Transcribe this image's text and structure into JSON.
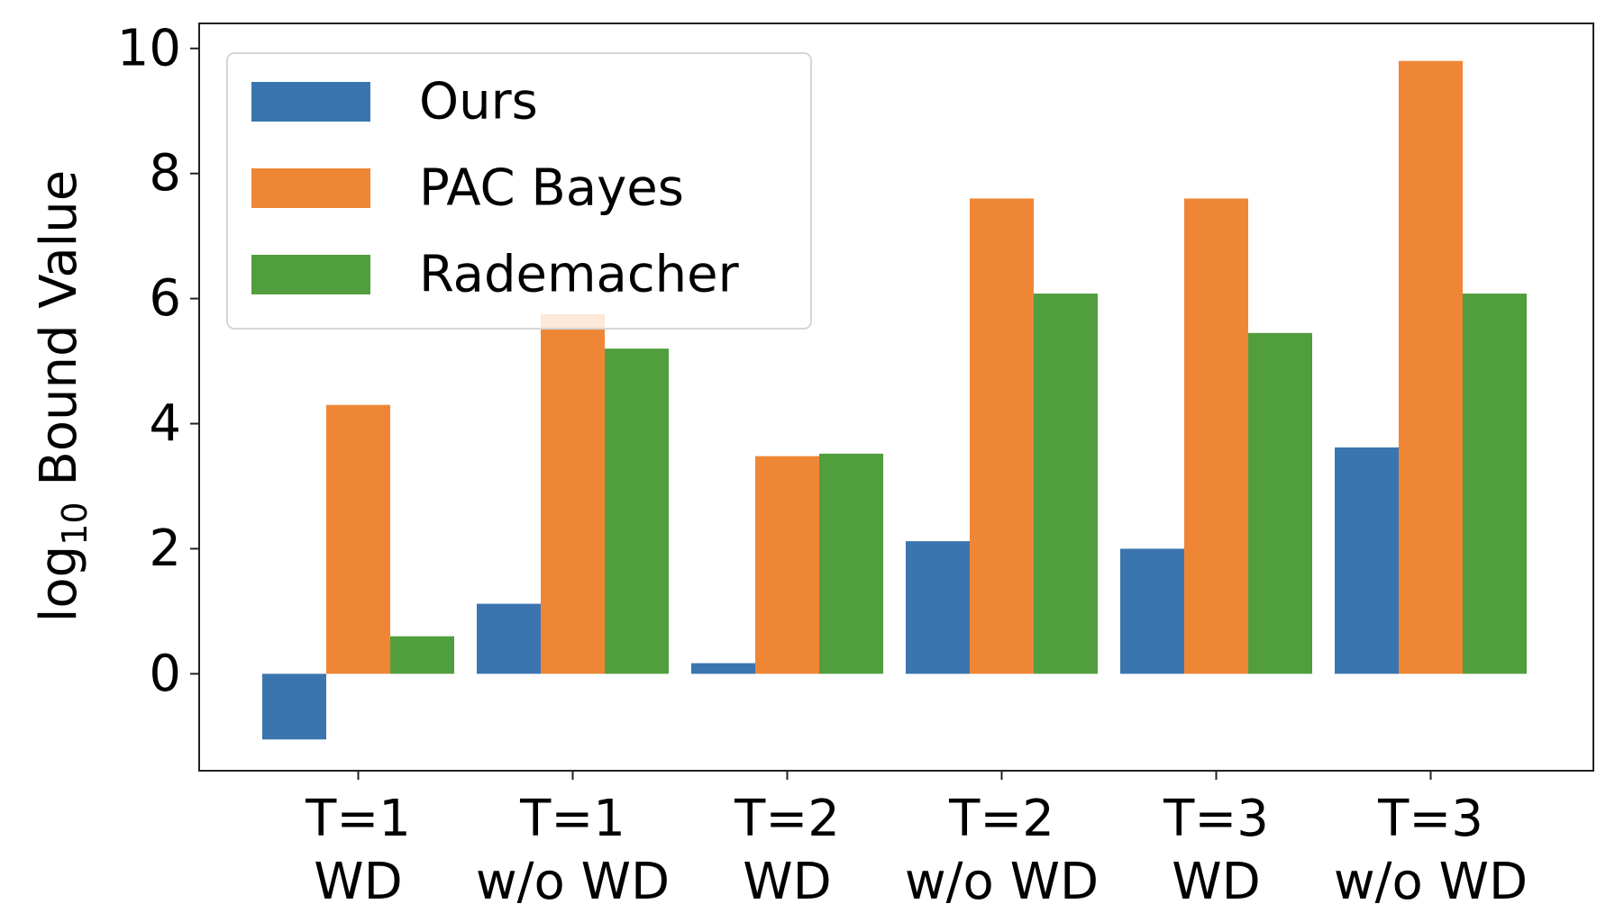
{
  "chart_data": {
    "type": "bar",
    "categories": [
      [
        "T=1",
        "WD"
      ],
      [
        "T=1",
        "w/o WD"
      ],
      [
        "T=2",
        "WD"
      ],
      [
        "T=2",
        "w/o WD"
      ],
      [
        "T=3",
        "WD"
      ],
      [
        "T=3",
        "w/o WD"
      ]
    ],
    "series": [
      {
        "name": "Ours",
        "color": "#3b75af",
        "values": [
          -1.05,
          1.12,
          0.17,
          2.12,
          2.0,
          3.62
        ]
      },
      {
        "name": "PAC Bayes",
        "color": "#ef8636",
        "values": [
          4.3,
          5.75,
          3.48,
          7.6,
          7.6,
          9.8
        ]
      },
      {
        "name": "Rademacher",
        "color": "#519e3e",
        "values": [
          0.6,
          5.2,
          3.52,
          6.08,
          5.45,
          6.08
        ]
      }
    ],
    "ylabel": "log10 Bound Value",
    "ylabel_main": "log",
    "ylabel_sub": "10",
    "ylabel_rest": " Bound Value",
    "ylim": [
      -1.55,
      10.4
    ],
    "yticks": [
      "0",
      "2",
      "4",
      "6",
      "8",
      "10"
    ],
    "ytick_values": [
      0,
      2,
      4,
      6,
      8,
      10
    ],
    "legend_position": "upper-left",
    "grid": false
  }
}
